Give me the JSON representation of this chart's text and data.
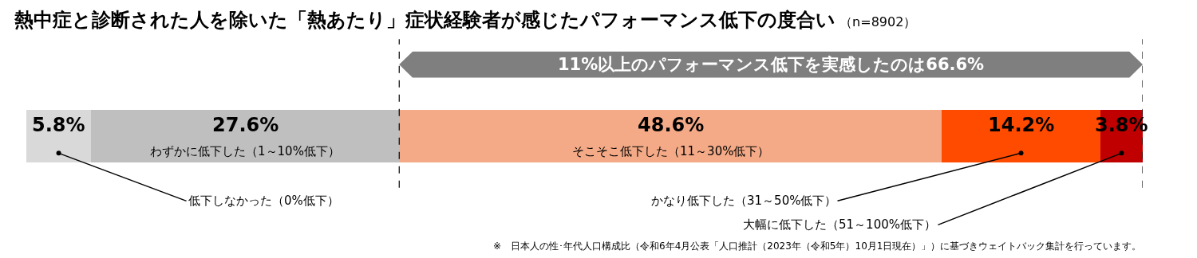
{
  "chart_data": {
    "type": "bar",
    "orientation": "horizontal",
    "stacked": true,
    "title": "熱中症と診断された人を除いた「熱あたり」症状経験者が感じたパフォーマンス低下の度合い",
    "subtitle": "（n=8902）",
    "categories": [
      null
    ],
    "series": [
      {
        "name": "低下しなかった（0%低下）",
        "color": "#d9d9d9",
        "values": [
          5.8
        ],
        "value_labels": [
          "5.8%"
        ]
      },
      {
        "name": "わずかに低下した（1～10%低下）",
        "color": "#bfbfbf",
        "values": [
          27.6
        ],
        "value_labels": [
          "27.6%"
        ]
      },
      {
        "name": "そこそこ低下した（11～30%低下）",
        "color": "#f4aa87",
        "values": [
          48.6
        ],
        "value_labels": [
          "48.6%"
        ]
      },
      {
        "name": "かなり低下した（31～50%低下）",
        "color": "#ff4b00",
        "values": [
          14.2
        ],
        "value_labels": [
          "14.2%"
        ]
      },
      {
        "name": "大幅に低下した（51～100%低下）",
        "color": "#c00000",
        "values": [
          3.8
        ],
        "value_labels": [
          "3.8%"
        ]
      }
    ],
    "xlim": [
      0,
      100
    ],
    "ref_lines": [
      {
        "axis": "x",
        "value": 33.4,
        "label": null,
        "line_style": "dashed"
      },
      {
        "axis": "x",
        "value": 100,
        "label": null,
        "line_style": "dashed"
      }
    ],
    "annotations": [
      "11%以上のパフォーマンス低下を実感したのは66.6%",
      "※　日本人の性･年代人口構成比（令和6年4月公表「人口推計（2023年（令和5年）10月1日現在）」）に基づきウェイトバック集計を行っています。"
    ]
  }
}
